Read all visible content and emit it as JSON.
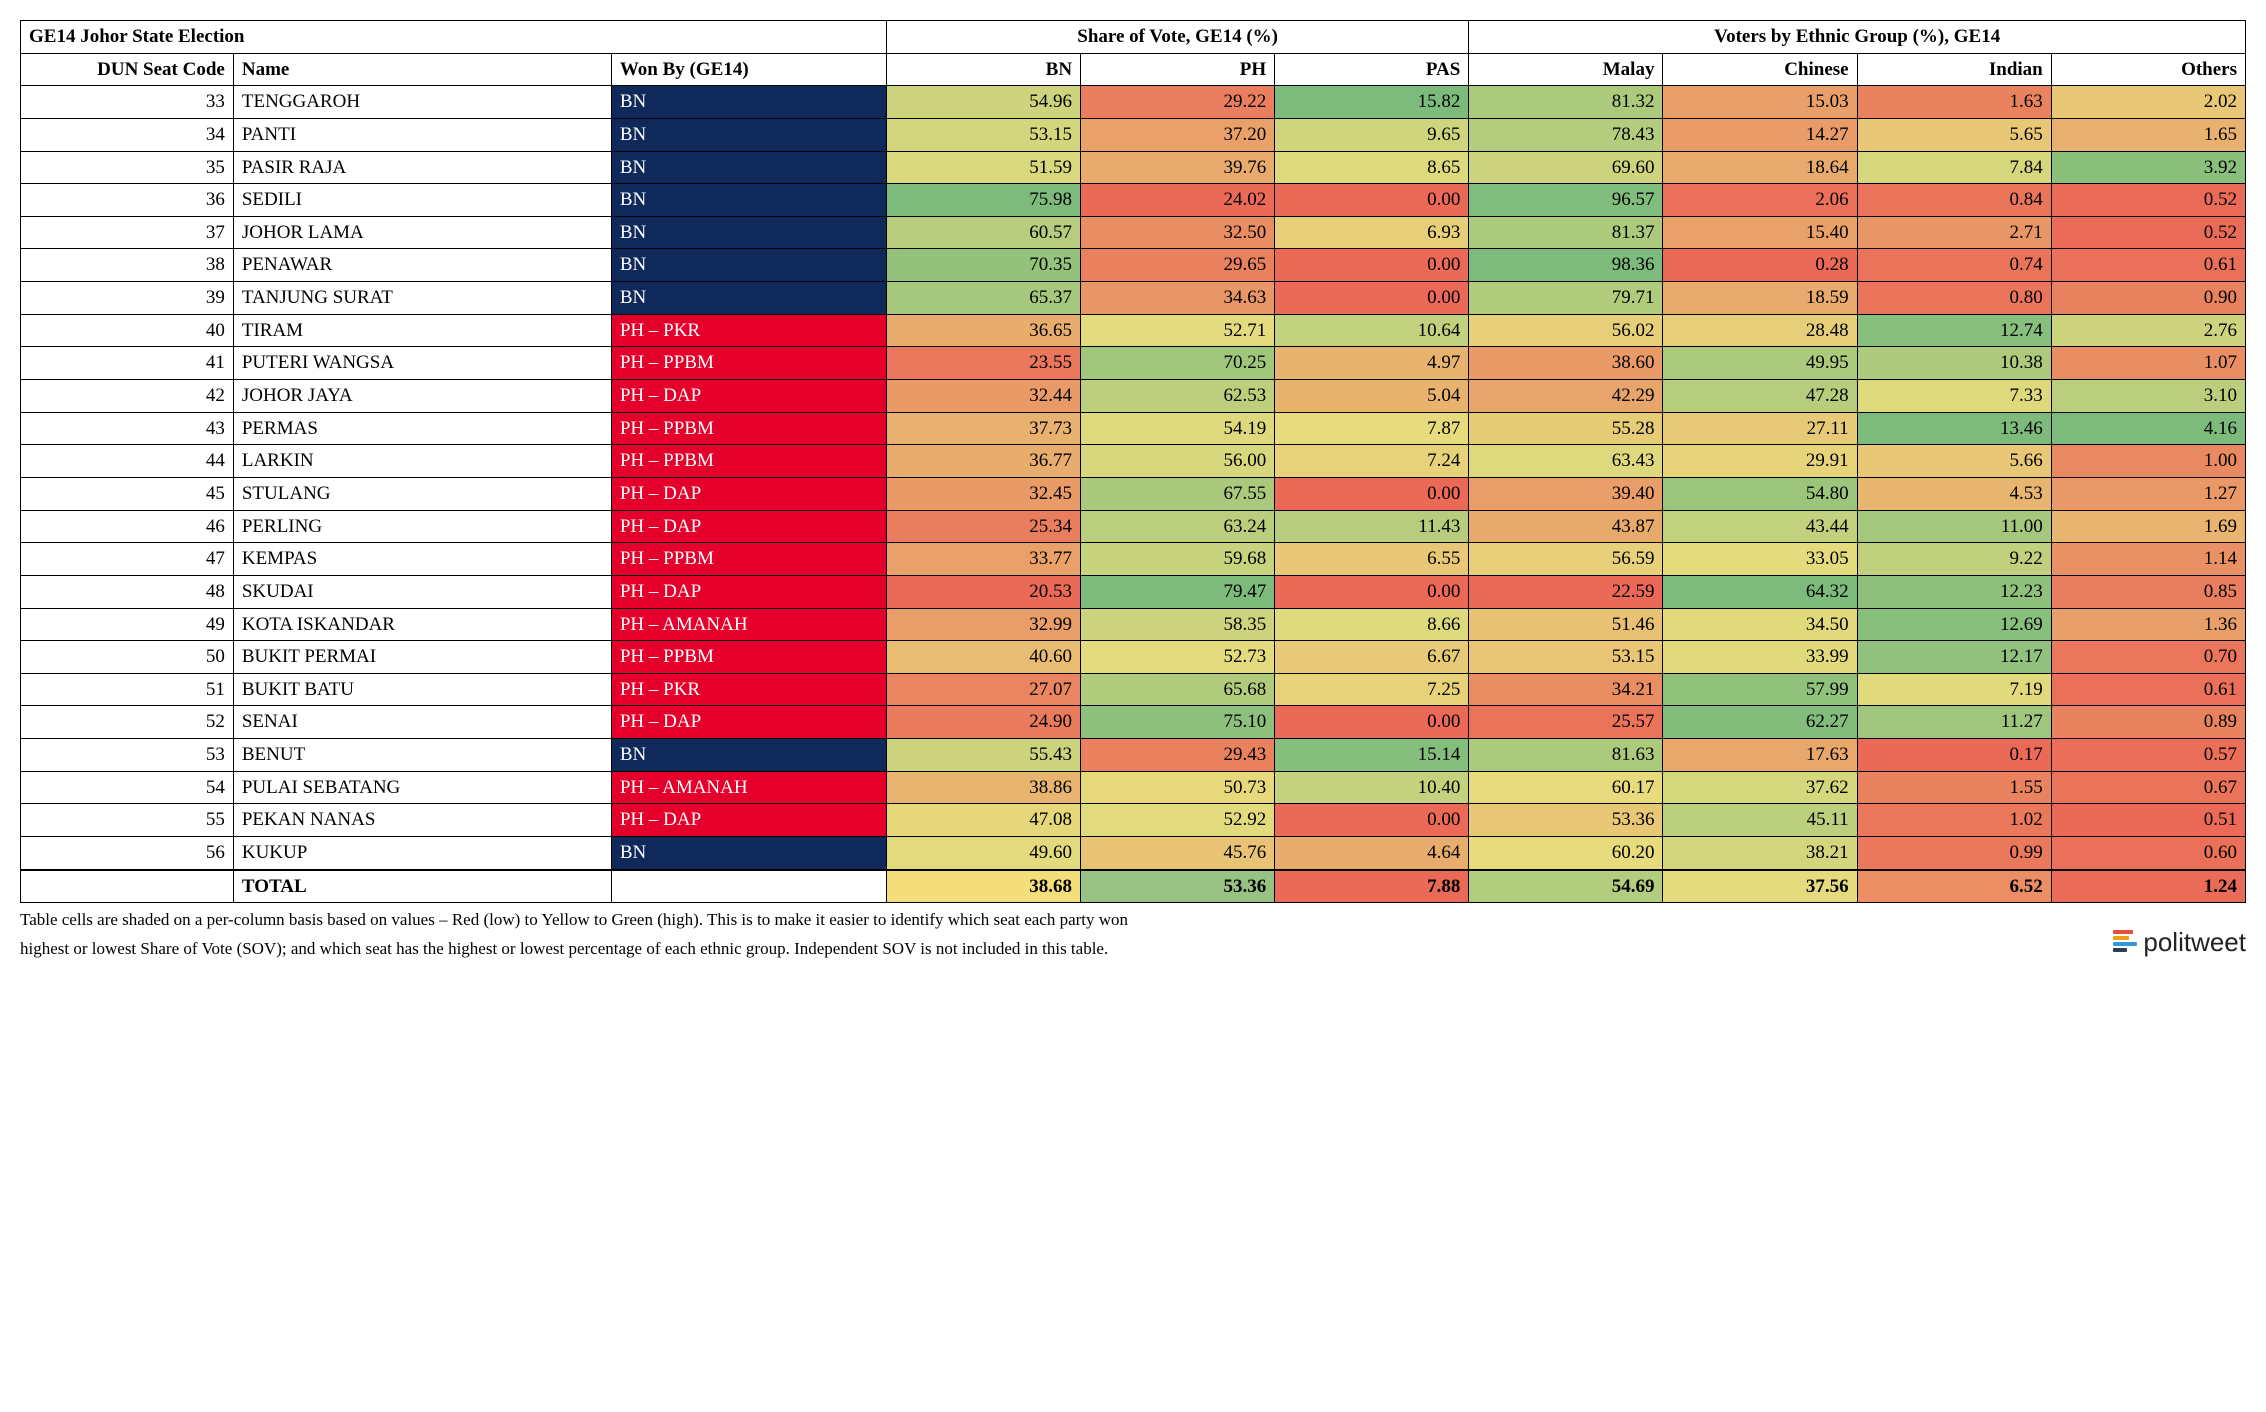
{
  "header": {
    "title": "GE14 Johor State Election",
    "group_vote": "Share of Vote, GE14 (%)",
    "group_ethnic": "Voters by Ethnic Group (%), GE14",
    "code": "DUN Seat Code",
    "name": "Name",
    "won": "Won By (GE14)",
    "vote_cols": [
      "BN",
      "PH",
      "PAS"
    ],
    "ethnic_cols": [
      "Malay",
      "Chinese",
      "Indian",
      "Others"
    ]
  },
  "winner_colors": {
    "BN": "#0f2a5a",
    "PH": "#e4002b"
  },
  "heat_scale": {
    "low": "#ea6a57",
    "mid": "#e7dc7d",
    "high": "#7cbb7c"
  },
  "column_ranges": {
    "bn": {
      "min": 20.53,
      "max": 75.98
    },
    "ph": {
      "min": 24.02,
      "max": 79.47
    },
    "pas": {
      "min": 0.0,
      "max": 15.82
    },
    "malay": {
      "min": 22.59,
      "max": 98.36
    },
    "chinese": {
      "min": 0.28,
      "max": 64.32
    },
    "indian": {
      "min": 0.17,
      "max": 13.46
    },
    "others": {
      "min": 0.51,
      "max": 4.16
    }
  },
  "rows": [
    {
      "code": 33,
      "name": "TENGGAROH",
      "won": "BN",
      "party": "BN",
      "bn": 54.96,
      "ph": 29.22,
      "pas": 15.82,
      "malay": 81.32,
      "chinese": 15.03,
      "indian": 1.63,
      "others": 2.02
    },
    {
      "code": 34,
      "name": "PANTI",
      "won": "BN",
      "party": "BN",
      "bn": 53.15,
      "ph": 37.2,
      "pas": 9.65,
      "malay": 78.43,
      "chinese": 14.27,
      "indian": 5.65,
      "others": 1.65
    },
    {
      "code": 35,
      "name": "PASIR RAJA",
      "won": "BN",
      "party": "BN",
      "bn": 51.59,
      "ph": 39.76,
      "pas": 8.65,
      "malay": 69.6,
      "chinese": 18.64,
      "indian": 7.84,
      "others": 3.92
    },
    {
      "code": 36,
      "name": "SEDILI",
      "won": "BN",
      "party": "BN",
      "bn": 75.98,
      "ph": 24.02,
      "pas": 0.0,
      "malay": 96.57,
      "chinese": 2.06,
      "indian": 0.84,
      "others": 0.52
    },
    {
      "code": 37,
      "name": "JOHOR LAMA",
      "won": "BN",
      "party": "BN",
      "bn": 60.57,
      "ph": 32.5,
      "pas": 6.93,
      "malay": 81.37,
      "chinese": 15.4,
      "indian": 2.71,
      "others": 0.52
    },
    {
      "code": 38,
      "name": "PENAWAR",
      "won": "BN",
      "party": "BN",
      "bn": 70.35,
      "ph": 29.65,
      "pas": 0.0,
      "malay": 98.36,
      "chinese": 0.28,
      "indian": 0.74,
      "others": 0.61
    },
    {
      "code": 39,
      "name": "TANJUNG SURAT",
      "won": "BN",
      "party": "BN",
      "bn": 65.37,
      "ph": 34.63,
      "pas": 0.0,
      "malay": 79.71,
      "chinese": 18.59,
      "indian": 0.8,
      "others": 0.9
    },
    {
      "code": 40,
      "name": "TIRAM",
      "won": "PH – PKR",
      "party": "PH",
      "bn": 36.65,
      "ph": 52.71,
      "pas": 10.64,
      "malay": 56.02,
      "chinese": 28.48,
      "indian": 12.74,
      "others": 2.76
    },
    {
      "code": 41,
      "name": "PUTERI WANGSA",
      "won": "PH – PPBM",
      "party": "PH",
      "bn": 23.55,
      "ph": 70.25,
      "pas": 4.97,
      "malay": 38.6,
      "chinese": 49.95,
      "indian": 10.38,
      "others": 1.07
    },
    {
      "code": 42,
      "name": "JOHOR JAYA",
      "won": "PH – DAP",
      "party": "PH",
      "bn": 32.44,
      "ph": 62.53,
      "pas": 5.04,
      "malay": 42.29,
      "chinese": 47.28,
      "indian": 7.33,
      "others": 3.1
    },
    {
      "code": 43,
      "name": "PERMAS",
      "won": "PH – PPBM",
      "party": "PH",
      "bn": 37.73,
      "ph": 54.19,
      "pas": 7.87,
      "malay": 55.28,
      "chinese": 27.11,
      "indian": 13.46,
      "others": 4.16
    },
    {
      "code": 44,
      "name": "LARKIN",
      "won": "PH – PPBM",
      "party": "PH",
      "bn": 36.77,
      "ph": 56.0,
      "pas": 7.24,
      "malay": 63.43,
      "chinese": 29.91,
      "indian": 5.66,
      "others": 1.0
    },
    {
      "code": 45,
      "name": "STULANG",
      "won": "PH – DAP",
      "party": "PH",
      "bn": 32.45,
      "ph": 67.55,
      "pas": 0.0,
      "malay": 39.4,
      "chinese": 54.8,
      "indian": 4.53,
      "others": 1.27
    },
    {
      "code": 46,
      "name": "PERLING",
      "won": "PH – DAP",
      "party": "PH",
      "bn": 25.34,
      "ph": 63.24,
      "pas": 11.43,
      "malay": 43.87,
      "chinese": 43.44,
      "indian": 11.0,
      "others": 1.69
    },
    {
      "code": 47,
      "name": "KEMPAS",
      "won": "PH – PPBM",
      "party": "PH",
      "bn": 33.77,
      "ph": 59.68,
      "pas": 6.55,
      "malay": 56.59,
      "chinese": 33.05,
      "indian": 9.22,
      "others": 1.14
    },
    {
      "code": 48,
      "name": "SKUDAI",
      "won": "PH – DAP",
      "party": "PH",
      "bn": 20.53,
      "ph": 79.47,
      "pas": 0.0,
      "malay": 22.59,
      "chinese": 64.32,
      "indian": 12.23,
      "others": 0.85
    },
    {
      "code": 49,
      "name": "KOTA ISKANDAR",
      "won": "PH – AMANAH",
      "party": "PH",
      "bn": 32.99,
      "ph": 58.35,
      "pas": 8.66,
      "malay": 51.46,
      "chinese": 34.5,
      "indian": 12.69,
      "others": 1.36
    },
    {
      "code": 50,
      "name": "BUKIT PERMAI",
      "won": "PH – PPBM",
      "party": "PH",
      "bn": 40.6,
      "ph": 52.73,
      "pas": 6.67,
      "malay": 53.15,
      "chinese": 33.99,
      "indian": 12.17,
      "others": 0.7
    },
    {
      "code": 51,
      "name": "BUKIT BATU",
      "won": "PH – PKR",
      "party": "PH",
      "bn": 27.07,
      "ph": 65.68,
      "pas": 7.25,
      "malay": 34.21,
      "chinese": 57.99,
      "indian": 7.19,
      "others": 0.61
    },
    {
      "code": 52,
      "name": "SENAI",
      "won": "PH – DAP",
      "party": "PH",
      "bn": 24.9,
      "ph": 75.1,
      "pas": 0.0,
      "malay": 25.57,
      "chinese": 62.27,
      "indian": 11.27,
      "others": 0.89
    },
    {
      "code": 53,
      "name": "BENUT",
      "won": "BN",
      "party": "BN",
      "bn": 55.43,
      "ph": 29.43,
      "pas": 15.14,
      "malay": 81.63,
      "chinese": 17.63,
      "indian": 0.17,
      "others": 0.57
    },
    {
      "code": 54,
      "name": "PULAI SEBATANG",
      "won": "PH – AMANAH",
      "party": "PH",
      "bn": 38.86,
      "ph": 50.73,
      "pas": 10.4,
      "malay": 60.17,
      "chinese": 37.62,
      "indian": 1.55,
      "others": 0.67
    },
    {
      "code": 55,
      "name": "PEKAN NANAS",
      "won": "PH – DAP",
      "party": "PH",
      "bn": 47.08,
      "ph": 52.92,
      "pas": 0.0,
      "malay": 53.36,
      "chinese": 45.11,
      "indian": 1.02,
      "others": 0.51
    },
    {
      "code": 56,
      "name": "KUKUP",
      "won": "BN",
      "party": "BN",
      "bn": 49.6,
      "ph": 45.76,
      "pas": 4.64,
      "malay": 60.2,
      "chinese": 38.21,
      "indian": 0.99,
      "others": 0.6
    }
  ],
  "total": {
    "label": "TOTAL",
    "bn": 38.68,
    "ph": 53.36,
    "pas": 7.88,
    "malay": 54.69,
    "chinese": 37.56,
    "indian": 6.52,
    "others": 1.24
  },
  "total_colors": {
    "bn": "#f3de79",
    "ph": "#97c284",
    "pas": "#ea6a57",
    "malay": "#b2cd7e",
    "chinese": "#e3db7c",
    "indian": "#ec8e64",
    "others": "#ea6b57"
  },
  "footnote1": "Table cells are shaded on a per-column basis based on values – Red (low) to Yellow to Green (high). This is to make it easier to identify which seat each party won",
  "footnote2": "highest or lowest Share of Vote (SOV); and which seat has the highest or lowest percentage of each ethnic group. Independent SOV is not included in this table.",
  "brand": "politweet",
  "brand_colors": [
    "#e74c3c",
    "#f39c12",
    "#3498db",
    "#2c3e50"
  ],
  "brand_widths": [
    20,
    16,
    24,
    14
  ]
}
